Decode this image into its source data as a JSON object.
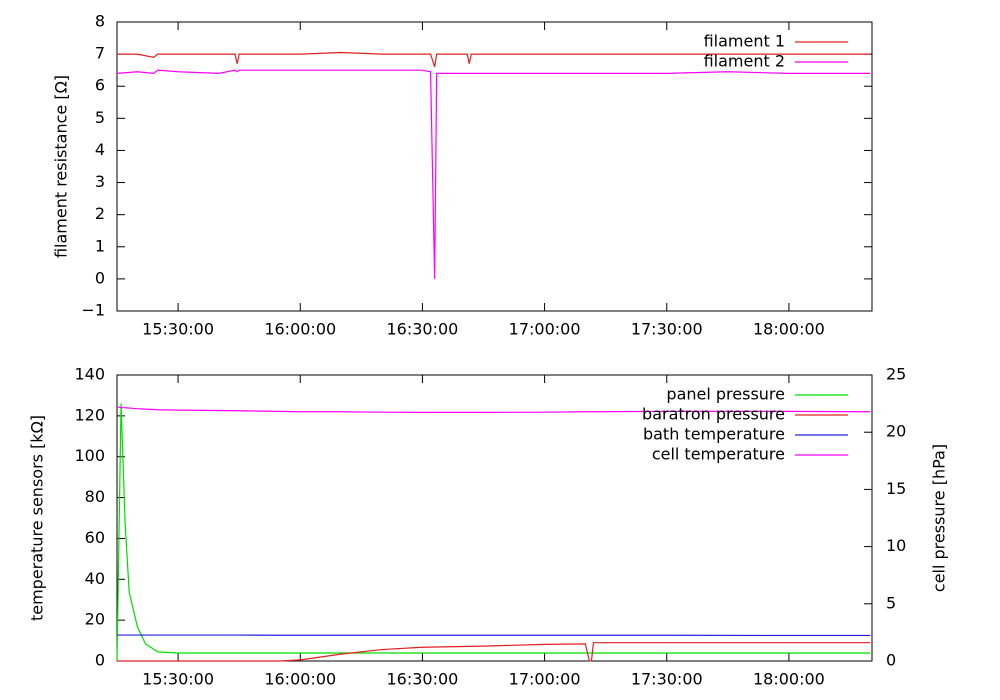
{
  "chart_data": [
    {
      "type": "line",
      "ylabel": "filament resistance [Ω]",
      "x": [
        "15:15:00",
        "15:20:00",
        "15:24:00",
        "15:25:00",
        "15:30:00",
        "15:40:00",
        "15:44:00",
        "15:44:30",
        "15:45:00",
        "15:50:00",
        "16:00:00",
        "16:10:00",
        "16:20:00",
        "16:30:00",
        "16:32:00",
        "16:33:00",
        "16:33:30",
        "16:34:00",
        "16:40:00",
        "16:41:00",
        "16:41:30",
        "16:42:00",
        "16:50:00",
        "17:00:00",
        "17:15:00",
        "17:30:00",
        "17:45:00",
        "18:00:00",
        "18:15:00",
        "18:20:00"
      ],
      "series": [
        {
          "name": "filament 1",
          "color": "#e02020",
          "values": [
            7.0,
            7.0,
            6.9,
            7.0,
            7.0,
            7.0,
            7.0,
            6.7,
            7.0,
            7.0,
            7.0,
            7.05,
            7.0,
            7.0,
            7.0,
            6.6,
            7.0,
            7.0,
            7.0,
            7.0,
            6.7,
            7.0,
            7.0,
            7.0,
            7.0,
            7.0,
            7.0,
            7.0,
            7.0,
            7.0
          ]
        },
        {
          "name": "filament 2",
          "color": "#ff00ff",
          "values": [
            6.4,
            6.45,
            6.4,
            6.5,
            6.45,
            6.4,
            6.5,
            6.45,
            6.5,
            6.5,
            6.5,
            6.5,
            6.5,
            6.5,
            6.45,
            0,
            6.4,
            6.4,
            6.4,
            6.4,
            6.4,
            6.4,
            6.4,
            6.4,
            6.4,
            6.4,
            6.45,
            6.4,
            6.4,
            6.4
          ]
        }
      ],
      "xlim": [
        "15:15:00",
        "18:20:24"
      ],
      "xticks": [
        "15:30:00",
        "16:00:00",
        "16:30:00",
        "17:00:00",
        "17:30:00",
        "18:00:00"
      ],
      "ylim": [
        -1,
        8
      ],
      "yticks": [
        {
          "value": -1,
          "label": "−1"
        },
        0,
        1,
        2,
        3,
        4,
        5,
        6,
        7,
        8
      ],
      "legend": "top-right"
    },
    {
      "type": "line",
      "ylabel": "temperature sensors [kΩ]",
      "y2label": "cell pressure [hPa]",
      "x": [
        "15:15:00",
        "15:16:00",
        "15:17:00",
        "15:18:00",
        "15:20:00",
        "15:22:00",
        "15:25:00",
        "15:30:00",
        "15:45:00",
        "15:55:00",
        "16:00:00",
        "16:10:00",
        "16:20:00",
        "16:30:00",
        "16:45:00",
        "17:00:00",
        "17:10:00",
        "17:11:00",
        "17:11:30",
        "17:12:00",
        "17:30:00",
        "18:00:00",
        "18:20:00"
      ],
      "series": [
        {
          "name": "panel pressure",
          "color": "#00dd00",
          "axis": "y2",
          "values": [
            0,
            22.5,
            12,
            6,
            3,
            1.5,
            0.8,
            0.7,
            0.7,
            0.7,
            0.7,
            0.7,
            0.7,
            0.7,
            0.7,
            0.7,
            0.7,
            0.7,
            0.7,
            0.7,
            0.7,
            0.7,
            0.7
          ]
        },
        {
          "name": "baratron pressure",
          "color": "#e02020",
          "axis": "y2",
          "values": [
            0,
            0,
            0,
            0,
            0,
            0,
            0,
            0,
            0,
            0,
            0.1,
            0.6,
            1.0,
            1.2,
            1.3,
            1.45,
            1.5,
            0,
            0,
            1.6,
            1.6,
            1.6,
            1.6
          ]
        },
        {
          "name": "bath temperature",
          "color": "#2020e0",
          "values": [
            12.7,
            12.7,
            12.7,
            12.7,
            12.7,
            12.7,
            12.7,
            12.7,
            12.7,
            12.6,
            12.6,
            12.6,
            12.6,
            12.6,
            12.6,
            12.6,
            12.6,
            12.6,
            12.6,
            12.6,
            12.6,
            12.5,
            12.5
          ]
        },
        {
          "name": "cell temperature",
          "color": "#ff00ff",
          "values": [
            124.5,
            124,
            124,
            123.8,
            123.5,
            123.3,
            123,
            122.8,
            122.5,
            122.2,
            122,
            122,
            121.8,
            121.7,
            121.7,
            121.8,
            122,
            122,
            122,
            122,
            122.2,
            122.2,
            122
          ]
        }
      ],
      "xlim": [
        "15:15:00",
        "18:20:24"
      ],
      "xticks": [
        "15:30:00",
        "16:00:00",
        "16:30:00",
        "17:00:00",
        "17:30:00",
        "18:00:00"
      ],
      "ylim": [
        0,
        140
      ],
      "yticks": [
        0,
        20,
        40,
        60,
        80,
        100,
        120,
        140
      ],
      "y2lim": [
        0,
        25
      ],
      "y2ticks": [
        0,
        5,
        10,
        15,
        20,
        25
      ],
      "legend": "top-right"
    }
  ]
}
